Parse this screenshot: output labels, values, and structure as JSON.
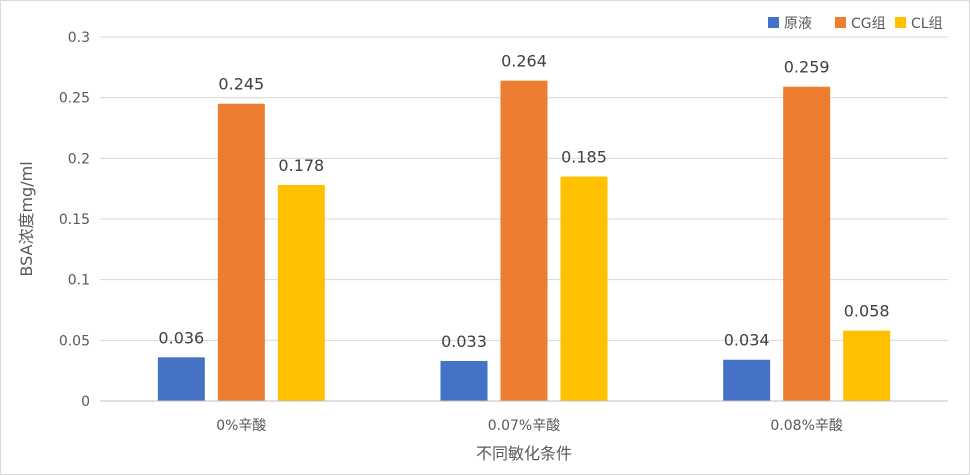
{
  "chart_data": {
    "type": "bar",
    "title": "",
    "xlabel": "不同敏化条件",
    "ylabel": "BSA浓度mg/ml",
    "categories": [
      "0%辛酸",
      "0.07%辛酸",
      "0.08%辛酸"
    ],
    "series": [
      {
        "name": "原液",
        "color": "#4472C4",
        "values": [
          0.036,
          0.033,
          0.034
        ],
        "labels": [
          "0.036",
          "0.033",
          "0.034"
        ]
      },
      {
        "name": "CG组",
        "color": "#ED7D31",
        "values": [
          0.245,
          0.264,
          0.259
        ],
        "labels": [
          "0.245",
          "0.264",
          "0.259"
        ]
      },
      {
        "name": "CL组",
        "color": "#FFC000",
        "values": [
          0.178,
          0.185,
          0.058
        ],
        "labels": [
          "0.178",
          "0.185",
          "0.058"
        ]
      }
    ],
    "ylim": [
      0,
      0.3
    ],
    "yticks": [
      0,
      0.05,
      0.1,
      0.15,
      0.2,
      0.25,
      0.3
    ],
    "ytick_labels": [
      "0",
      "0.05",
      "0.1",
      "0.15",
      "0.2",
      "0.25",
      "0.3"
    ],
    "grid": true,
    "legend": "top-right",
    "colors": {
      "grid": "#d9d9d9",
      "axis": "#bfbfbf",
      "text": "#595959"
    }
  }
}
